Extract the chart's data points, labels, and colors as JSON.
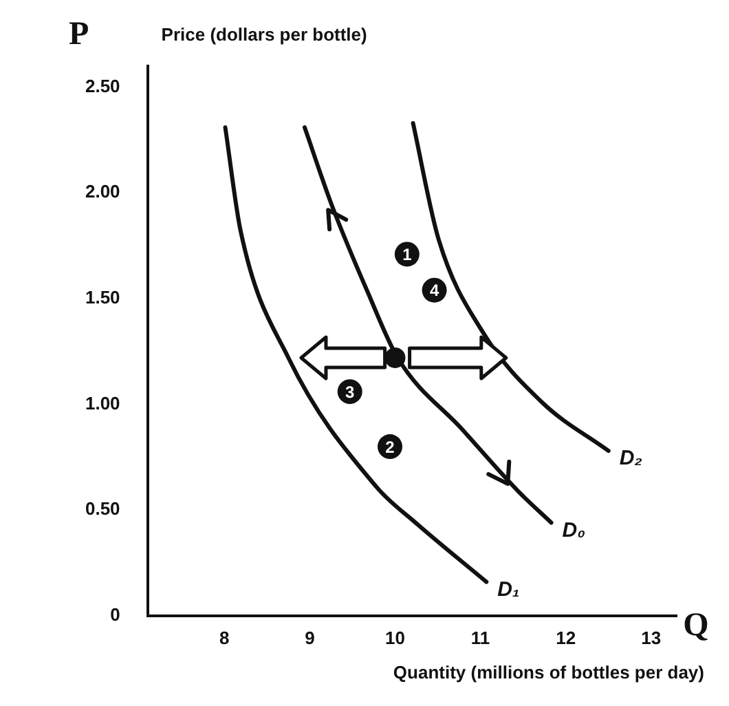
{
  "chart_data": {
    "type": "line",
    "xlabel": "Quantity (millions of bottles per day)",
    "ylabel": "Price (dollars per bottle)",
    "xlim": [
      7.1,
      13.3
    ],
    "xticks": [
      8,
      9,
      10,
      11,
      12,
      13
    ],
    "ylim": [
      0,
      2.6
    ],
    "yticks": [
      {
        "value": 0,
        "label": "0"
      },
      {
        "value": 0.5,
        "label": "0.50"
      },
      {
        "value": 1,
        "label": "1.00"
      },
      {
        "value": 1.5,
        "label": "1.50"
      },
      {
        "value": 2,
        "label": "2.00"
      },
      {
        "value": 2.5,
        "label": "2.50"
      }
    ],
    "grid": false,
    "legend": false,
    "marker": "none",
    "line_style": "solid",
    "series": [
      {
        "name": "D₀",
        "color": "#111111",
        "x": [
          8.94,
          9.26,
          9.68,
          10.03,
          10.79,
          11.44,
          11.83
        ],
        "values": [
          2.31,
          1.94,
          1.53,
          1.22,
          0.88,
          0.59,
          0.44
        ]
      },
      {
        "name": "D₁",
        "color": "#111111",
        "x": [
          8.01,
          8.19,
          8.75,
          9.78,
          10.24,
          11.07
        ],
        "values": [
          2.31,
          1.82,
          1.22,
          0.61,
          0.44,
          0.16
        ]
      },
      {
        "name": "D₂",
        "color": "#111111",
        "x": [
          10.21,
          10.51,
          11.03,
          11.72,
          12.5
        ],
        "values": [
          2.33,
          1.78,
          1.34,
          1.01,
          0.78
        ]
      },
      {
        "type": "scatter",
        "marker": "circle",
        "color": "#111111",
        "x": [
          10
        ],
        "values": [
          1.22
        ]
      }
    ],
    "annotations": [
      "P",
      "Q",
      {
        "text": "1",
        "x": 10.14,
        "y": 1.71
      },
      {
        "text": "2",
        "x": 9.94,
        "y": 0.8
      },
      {
        "text": "3",
        "x": 9.47,
        "y": 1.06
      },
      {
        "text": "4",
        "x": 10.46,
        "y": 1.54
      }
    ]
  }
}
